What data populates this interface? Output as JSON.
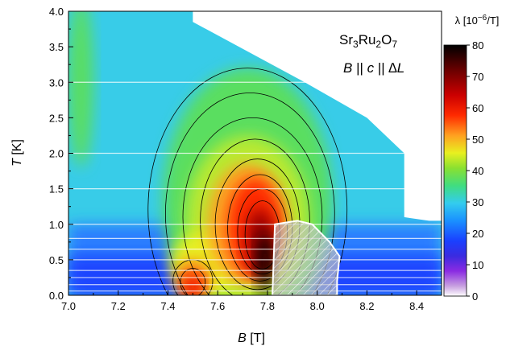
{
  "chart_data": {
    "type": "heatmap",
    "title": "",
    "annotations": {
      "compound": {
        "pre": "Sr",
        "sub1": "3",
        "mid": "Ru",
        "sub2": "2",
        "post": "O",
        "sub3": "7"
      },
      "geometry": {
        "b": "B",
        "sep1": " || ",
        "c": "c",
        "sep2": " || ",
        "dl": "∆L"
      }
    },
    "x_axis": {
      "label_italic": "B",
      "label_rest": " [T]",
      "range": [
        7.0,
        8.5
      ],
      "ticks": [
        "7.0",
        "7.2",
        "7.4",
        "7.6",
        "7.8",
        "8.0",
        "8.2",
        "8.4"
      ],
      "tick_values": [
        7.0,
        7.2,
        7.4,
        7.6,
        7.8,
        8.0,
        8.2,
        8.4
      ]
    },
    "y_axis": {
      "label_italic": "T",
      "label_rest": " [K]",
      "range": [
        0.0,
        4.0
      ],
      "ticks": [
        "0.0",
        "0.5",
        "1.0",
        "1.5",
        "2.0",
        "2.5",
        "3.0",
        "3.5",
        "4.0"
      ],
      "tick_values": [
        0.0,
        0.5,
        1.0,
        1.5,
        2.0,
        2.5,
        3.0,
        3.5,
        4.0
      ]
    },
    "colorbar": {
      "label_pre": "λ [10",
      "label_sup": "−6",
      "label_post": "/T]",
      "range": [
        0,
        80
      ],
      "ticks": [
        "0",
        "10",
        "20",
        "30",
        "40",
        "50",
        "60",
        "70",
        "80"
      ],
      "tick_values": [
        0,
        10,
        20,
        30,
        40,
        50,
        60,
        70,
        80
      ]
    },
    "measurement_temperatures_K": [
      0.06,
      0.15,
      0.25,
      0.35,
      0.5,
      0.65,
      0.8,
      1.0,
      1.5,
      2.0,
      3.0
    ],
    "no_data_region_boundary": [
      [
        7.5,
        4.0
      ],
      [
        7.5,
        3.85
      ],
      [
        7.95,
        3.0
      ],
      [
        8.2,
        2.5
      ],
      [
        8.35,
        2.0
      ],
      [
        8.35,
        1.1
      ],
      [
        8.45,
        1.05
      ],
      [
        8.5,
        1.05
      ],
      [
        8.5,
        4.0
      ]
    ],
    "hatched_region_boundary": [
      [
        7.82,
        0.0
      ],
      [
        7.83,
        1.0
      ],
      [
        7.92,
        1.05
      ],
      [
        7.98,
        1.0
      ],
      [
        8.05,
        0.75
      ],
      [
        8.09,
        0.55
      ],
      [
        8.08,
        0.2
      ],
      [
        8.08,
        0.0
      ]
    ],
    "peaks": [
      {
        "B": 7.78,
        "T": 0.5,
        "value": 80
      },
      {
        "B": 7.5,
        "T": 0.15,
        "value": 70
      }
    ]
  }
}
